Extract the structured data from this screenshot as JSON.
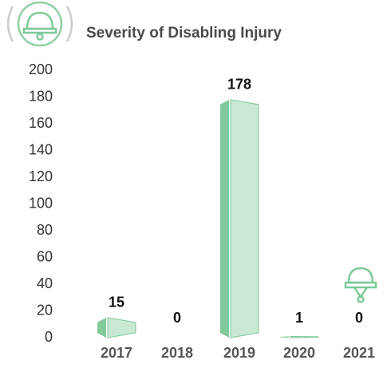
{
  "chart_data": {
    "type": "bar",
    "title": "Severity of Disabling Injury",
    "categories": [
      "2017",
      "2018",
      "2019",
      "2020",
      "2021"
    ],
    "values": [
      15,
      0,
      178,
      1,
      0
    ],
    "color": "#c8e8d2",
    "edge_color": "#7fc99a",
    "ylim": [
      0,
      200
    ],
    "yticks": [
      0,
      20,
      40,
      60,
      80,
      100,
      120,
      140,
      160,
      180,
      200
    ]
  }
}
